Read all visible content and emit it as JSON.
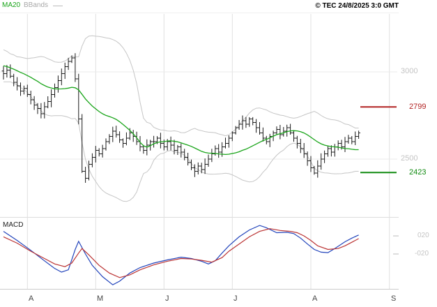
{
  "header": {
    "legend_ma20": "MA20",
    "legend_bbands": "BBands",
    "copyright": "© TEC 24/8/2025 3:0 GMT"
  },
  "price_axis": {
    "ticks": [
      "3000",
      "2500"
    ],
    "levels": [
      {
        "label": "2799",
        "price": 2799,
        "color": "#b22222"
      },
      {
        "label": "2423",
        "price": 2423,
        "color": "#0f8a0f"
      }
    ]
  },
  "macd_axis": {
    "title": "MACD",
    "ticks": [
      "020",
      "-020"
    ]
  },
  "colors": {
    "ma20": "#1aa51a",
    "bbands": "#c5c5c5",
    "bars": "#1a1a1a",
    "macd_line": "#2244bb",
    "signal_line": "#bb3333",
    "grid": "#e0e0e0"
  },
  "chart_data": {
    "type": "candlestick",
    "title": "Daily OHLC bars with MA20, Bollinger Bands and MACD sub-panel",
    "x_axis": {
      "labels": [
        "A",
        "M",
        "J",
        "J",
        "A",
        "S"
      ],
      "label_slots": [
        7,
        27,
        47,
        67,
        90,
        113
      ],
      "total_slots": 116
    },
    "price_panel": {
      "ylim": [
        2172,
        3324
      ],
      "gridline_prices": [
        3000,
        2500
      ],
      "ma_period": 20,
      "bb_mult": 2,
      "closes_warmup": [
        3080,
        3100,
        3120,
        3090,
        3110,
        3080,
        3060,
        3070,
        3040,
        3050,
        3020,
        3030,
        3000,
        3010,
        2980,
        3000,
        2970,
        2985,
        2995,
        3000
      ],
      "closes": [
        2990,
        3010,
        2975,
        2940,
        2920,
        2890,
        2905,
        2870,
        2840,
        2810,
        2790,
        2760,
        2800,
        2830,
        2870,
        2910,
        2950,
        2990,
        3030,
        3060,
        3080,
        2960,
        2730,
        2430,
        2390,
        2470,
        2510,
        2550,
        2530,
        2560,
        2600,
        2630,
        2660,
        2640,
        2610,
        2590,
        2620,
        2650,
        2630,
        2600,
        2570,
        2550,
        2580,
        2600,
        2600,
        2620,
        2590,
        2570,
        2600,
        2580,
        2550,
        2570,
        2540,
        2510,
        2480,
        2450,
        2430,
        2460,
        2440,
        2470,
        2500,
        2530,
        2560,
        2540,
        2570,
        2590,
        2620,
        2650,
        2680,
        2700,
        2720,
        2700,
        2730,
        2710,
        2680,
        2650,
        2620,
        2600,
        2630,
        2650,
        2670,
        2640,
        2660,
        2680,
        2650,
        2620,
        2590,
        2560,
        2530,
        2490,
        2450,
        2420,
        2460,
        2500,
        2530,
        2560,
        2540,
        2570,
        2590,
        2570,
        2600,
        2620,
        2600,
        2630,
        2650
      ]
    },
    "macd_panel": {
      "ylim": [
        -0.97,
        0.54
      ],
      "gridline_values": [
        0.2,
        -0.2
      ],
      "macd": [
        [
          0,
          0.3
        ],
        [
          4,
          0.1
        ],
        [
          8,
          -0.12
        ],
        [
          12,
          -0.35
        ],
        [
          15,
          -0.52
        ],
        [
          17,
          -0.6
        ],
        [
          19,
          -0.55
        ],
        [
          21,
          -0.1
        ],
        [
          22,
          0.08
        ],
        [
          24,
          -0.2
        ],
        [
          26,
          -0.45
        ],
        [
          29,
          -0.7
        ],
        [
          32,
          -0.88
        ],
        [
          34,
          -0.8
        ],
        [
          37,
          -0.62
        ],
        [
          40,
          -0.5
        ],
        [
          44,
          -0.4
        ],
        [
          48,
          -0.33
        ],
        [
          52,
          -0.27
        ],
        [
          55,
          -0.3
        ],
        [
          58,
          -0.36
        ],
        [
          60,
          -0.42
        ],
        [
          62,
          -0.35
        ],
        [
          64,
          -0.18
        ],
        [
          66,
          -0.02
        ],
        [
          69,
          0.18
        ],
        [
          72,
          0.33
        ],
        [
          75,
          0.43
        ],
        [
          77,
          0.38
        ],
        [
          80,
          0.27
        ],
        [
          83,
          0.28
        ],
        [
          85,
          0.25
        ],
        [
          87,
          0.15
        ],
        [
          89,
          0.02
        ],
        [
          91,
          -0.1
        ],
        [
          93,
          -0.16
        ],
        [
          95,
          -0.17
        ],
        [
          97,
          -0.08
        ],
        [
          100,
          0.07
        ],
        [
          102,
          0.15
        ],
        [
          104,
          0.22
        ]
      ],
      "signal": [
        [
          0,
          0.18
        ],
        [
          4,
          0.04
        ],
        [
          8,
          -0.14
        ],
        [
          12,
          -0.3
        ],
        [
          15,
          -0.42
        ],
        [
          18,
          -0.48
        ],
        [
          20,
          -0.4
        ],
        [
          22,
          -0.18
        ],
        [
          23,
          -0.08
        ],
        [
          25,
          -0.22
        ],
        [
          28,
          -0.45
        ],
        [
          31,
          -0.62
        ],
        [
          34,
          -0.72
        ],
        [
          37,
          -0.66
        ],
        [
          40,
          -0.55
        ],
        [
          44,
          -0.44
        ],
        [
          48,
          -0.36
        ],
        [
          52,
          -0.3
        ],
        [
          55,
          -0.31
        ],
        [
          58,
          -0.34
        ],
        [
          61,
          -0.38
        ],
        [
          64,
          -0.28
        ],
        [
          66,
          -0.14
        ],
        [
          69,
          0.02
        ],
        [
          72,
          0.18
        ],
        [
          75,
          0.3
        ],
        [
          78,
          0.36
        ],
        [
          81,
          0.32
        ],
        [
          84,
          0.3
        ],
        [
          86,
          0.27
        ],
        [
          88,
          0.2
        ],
        [
          90,
          0.1
        ],
        [
          92,
          -0.02
        ],
        [
          95,
          -0.1
        ],
        [
          98,
          -0.08
        ],
        [
          100,
          -0.02
        ],
        [
          102,
          0.06
        ],
        [
          104,
          0.14
        ]
      ]
    }
  }
}
